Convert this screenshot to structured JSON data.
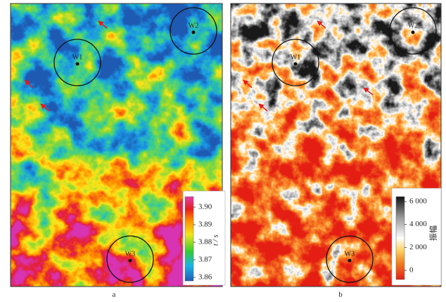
{
  "panels": [
    {
      "label": "a",
      "wells": [
        "W1",
        "W2",
        "W3"
      ],
      "colorbar": {
        "title": "t / s",
        "lim": [
          3.858,
          3.906
        ],
        "ticks": [
          {
            "value": 3.9,
            "label": "3.90"
          },
          3.89,
          3.88,
          3.87,
          3.86
        ]
      }
    },
    {
      "label": "b",
      "wells": [
        "W1",
        "W2",
        "W3"
      ],
      "colorbar": {
        "title": "振幅",
        "lim": [
          -800,
          6430
        ],
        "ticks": [
          {
            "value": 6000,
            "label": "6 000"
          },
          {
            "value": 4000,
            "label": "4 000"
          },
          {
            "value": 2000,
            "label": "2 000"
          },
          0
        ]
      }
    }
  ]
}
